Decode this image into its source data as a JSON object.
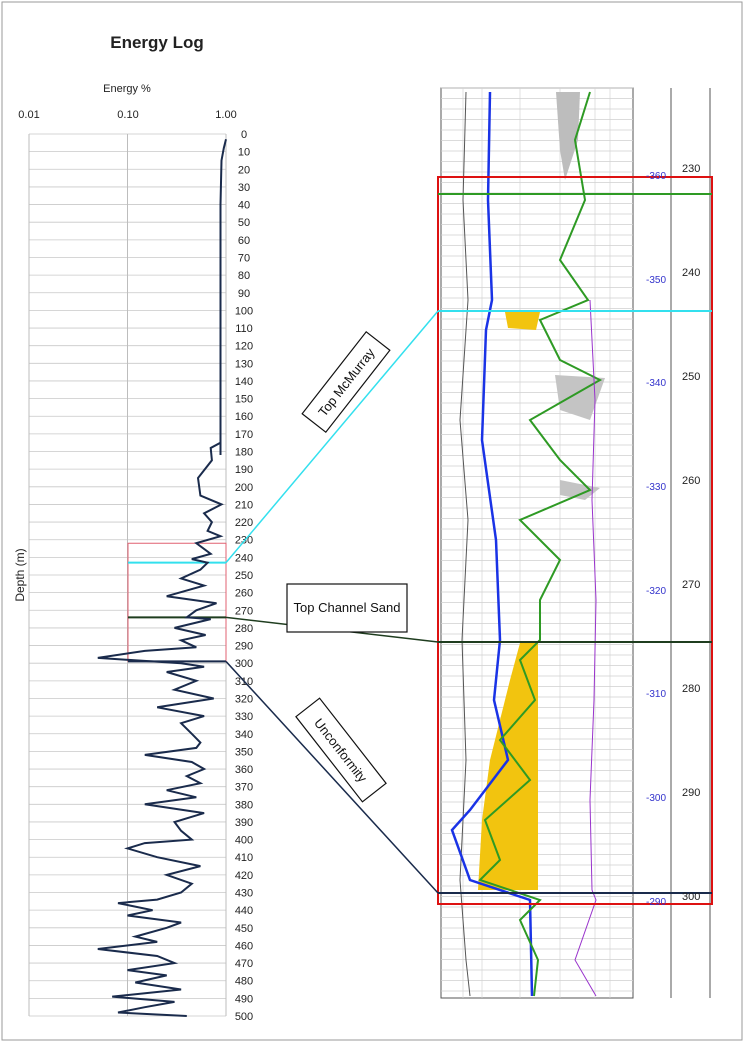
{
  "chart_data": {
    "type": "line",
    "title": "Energy Log",
    "xlabel": "Energy %",
    "ylabel": "Depth (m)",
    "x_scale": "log",
    "xlim": [
      0.01,
      1.0
    ],
    "x_ticks": [
      "0.01",
      "0.10",
      "1.00"
    ],
    "ylim": [
      0,
      500
    ],
    "y_ticks": [
      "0",
      "10",
      "20",
      "30",
      "40",
      "50",
      "60",
      "70",
      "80",
      "90",
      "100",
      "110",
      "120",
      "130",
      "140",
      "150",
      "160",
      "170",
      "180",
      "190",
      "200",
      "210",
      "220",
      "230",
      "240",
      "250",
      "260",
      "270",
      "280",
      "290",
      "300",
      "310",
      "320",
      "330",
      "340",
      "350",
      "360",
      "370",
      "380",
      "390",
      "400",
      "410",
      "420",
      "430",
      "440",
      "450",
      "460",
      "470",
      "480",
      "490",
      "500"
    ],
    "series": [
      {
        "color": "#1a2b4c",
        "x": [
          1.0,
          0.95,
          0.9,
          0.88,
          0.88,
          0.88,
          0.88,
          0.88,
          0.88,
          0.88,
          0.88,
          0.88,
          0.88,
          0.88,
          0.88,
          0.88,
          0.88,
          0.88,
          0.88,
          0.88,
          0.88,
          0.7,
          0.72,
          0.52,
          0.55,
          0.9,
          0.6,
          0.72,
          0.65,
          0.88,
          0.5,
          0.7,
          0.45,
          0.65,
          0.55,
          0.35,
          0.6,
          0.25,
          0.8,
          0.5,
          0.4,
          0.7,
          0.3,
          0.62,
          0.35,
          0.5,
          0.15,
          0.05,
          0.35,
          0.6,
          0.25,
          0.5,
          0.3,
          0.75,
          0.2,
          0.6,
          0.35,
          0.45,
          0.55,
          0.5,
          0.15,
          0.45,
          0.6,
          0.4,
          0.55,
          0.25,
          0.5,
          0.15,
          0.6,
          0.3,
          0.35,
          0.45,
          0.15,
          0.1,
          0.2,
          0.55,
          0.25,
          0.45,
          0.35,
          0.2,
          0.08,
          0.18,
          0.1,
          0.35,
          0.25,
          0.12,
          0.2,
          0.05,
          0.2,
          0.3,
          0.1,
          0.25,
          0.12,
          0.35,
          0.07,
          0.3,
          0.15,
          0.08,
          0.4
        ],
        "y": [
          3,
          8,
          15,
          40,
          60,
          80,
          100,
          120,
          140,
          160,
          170,
          172,
          174,
          176,
          177,
          178,
          179,
          180,
          181,
          182,
          175,
          178,
          185,
          195,
          205,
          210,
          215,
          220,
          225,
          228,
          232,
          238,
          241,
          243,
          247,
          252,
          256,
          262,
          266,
          270,
          274,
          275,
          280,
          284,
          287,
          291,
          293,
          297,
          300,
          302,
          305,
          310,
          315,
          320,
          325,
          330,
          334,
          340,
          345,
          348,
          352,
          356,
          360,
          364,
          368,
          372,
          376,
          380,
          385,
          390,
          395,
          400,
          402,
          405,
          410,
          415,
          420,
          425,
          430,
          434,
          436,
          440,
          443,
          447,
          450,
          455,
          458,
          462,
          466,
          470,
          474,
          477,
          481,
          485,
          489,
          492,
          495,
          498,
          500
        ]
      }
    ],
    "horizons": [
      {
        "name": "Top McMurray",
        "depth": 243,
        "color": "#33e0ee"
      },
      {
        "name": "Top Channel Sand",
        "depth": 274,
        "color": "#1f3d1f"
      },
      {
        "name": "Unconformity",
        "depth": 299,
        "color": "#1a2b4c"
      }
    ]
  },
  "log_panel": {
    "subsea_labels": [
      "-360",
      "-350",
      "-340",
      "-330",
      "-320",
      "-310",
      "-300",
      "-290"
    ],
    "depth_labels": [
      "230",
      "240",
      "250",
      "260",
      "270",
      "280",
      "290",
      "300"
    ]
  }
}
